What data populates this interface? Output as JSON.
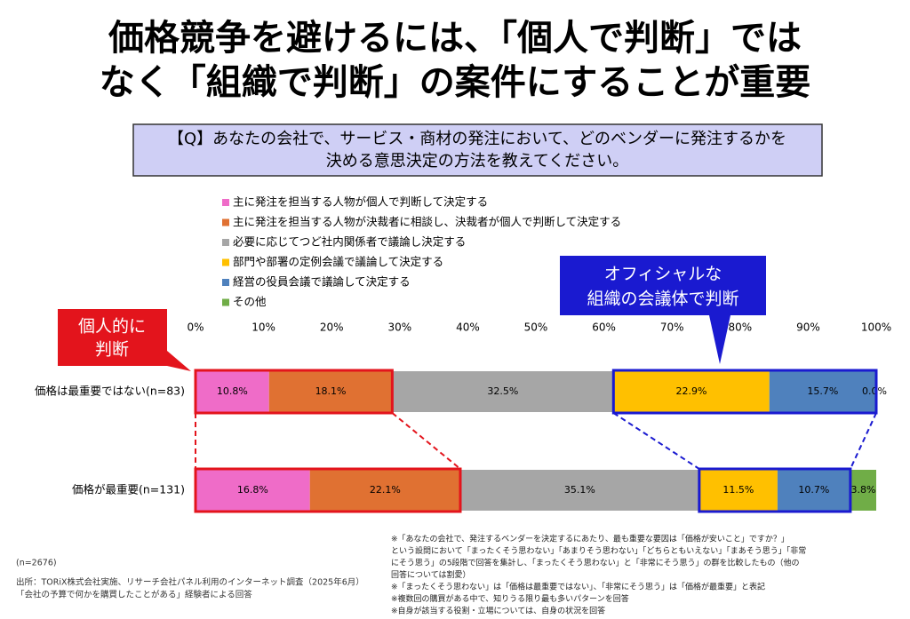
{
  "chart_data": {
    "type": "stacked-bar-horizontal",
    "title": [
      "価格競争を避けるには、「個人で判断」では",
      "なく「組織で判断」の案件にすることが重要"
    ],
    "question": [
      "【Q】あなたの会社で、サービス・商材の発注において、どのベンダーに発注するかを",
      "決める意思決定の方法を教えてください。"
    ],
    "categories": [
      "価格は最重要ではない(n=83)",
      "価格が最重要(n=131)"
    ],
    "series": [
      {
        "name": "主に発注を担当する人物が個人で判断して決定する",
        "color": "#ef6cc8",
        "values": [
          10.8,
          16.8
        ],
        "value_labels": [
          "10.8%",
          "16.8%"
        ]
      },
      {
        "name": "主に発注を担当する人物が決裁者に相談し、決裁者が個人で判断して決定する",
        "color": "#e07132",
        "values": [
          18.1,
          22.1
        ],
        "value_labels": [
          "18.1%",
          "22.1%"
        ]
      },
      {
        "name": "必要に応じてつど社内関係者で議論し決定する",
        "color": "#a6a6a6",
        "values": [
          32.5,
          35.1
        ],
        "value_labels": [
          "32.5%",
          "35.1%"
        ]
      },
      {
        "name": "部門や部署の定例会議で議論して決定する",
        "color": "#ffc000",
        "values": [
          22.9,
          11.5
        ],
        "value_labels": [
          "22.9%",
          "11.5%"
        ]
      },
      {
        "name": "経営の役員会議で議論して決定する",
        "color": "#4f81bd",
        "values": [
          15.7,
          10.7
        ],
        "value_labels": [
          "15.7%",
          "10.7%"
        ]
      },
      {
        "name": "その他",
        "color": "#70ad47",
        "values": [
          0.0,
          3.8
        ],
        "value_labels": [
          "0.0%",
          "3.8%"
        ]
      }
    ],
    "xlim": [
      0,
      100
    ],
    "xticks": [
      {
        "value": 0,
        "label": "0%"
      },
      {
        "value": 10,
        "label": "10%"
      },
      {
        "value": 20,
        "label": "20%"
      },
      {
        "value": 30,
        "label": "30%"
      },
      {
        "value": 40,
        "label": "40%"
      },
      {
        "value": 50,
        "label": "50%"
      },
      {
        "value": 60,
        "label": "60%"
      },
      {
        "value": 70,
        "label": "70%"
      },
      {
        "value": 80,
        "label": "80%"
      },
      {
        "value": 90,
        "label": "90%"
      },
      {
        "value": 100,
        "label": "100%"
      }
    ],
    "annotations": [
      {
        "lines": [
          "個人的に",
          "判断"
        ],
        "color": "#e3141c"
      },
      {
        "lines": [
          "オフィシャルな",
          "組織の会議体で判断"
        ],
        "color": "#1a1ad0"
      }
    ],
    "notes": [
      "※「あなたの会社で、発注するベンダーを決定するにあたり、最も重要な要因は「価格が安いこと」ですか？」",
      "という設問において「まったくそう思わない」「あまりそう思わない」「どちらともいえない」「まあそう思う」「非常",
      "にそう思う」の5段階で回答を集計し、「まったくそう思わない」と「非常にそう思う」の群を比較したもの（他の",
      "回答については割愛）",
      "※「まったくそう思わない」は「価格は最重要ではない」、「非常にそう思う」は「価格が最重要」と表記",
      "※複数回の購買がある中で、知りうる限り最も多いパターンを回答",
      "※自身が該当する役割・立場については、自身の状況を回答"
    ],
    "sample_size": "(n=2676)",
    "source": [
      "出所：TORiX株式会社実施、リサーチ会社パネル利用のインターネット調査（2025年6月）",
      "「会社の予算で何かを購買したことがある」経験者による回答"
    ]
  }
}
